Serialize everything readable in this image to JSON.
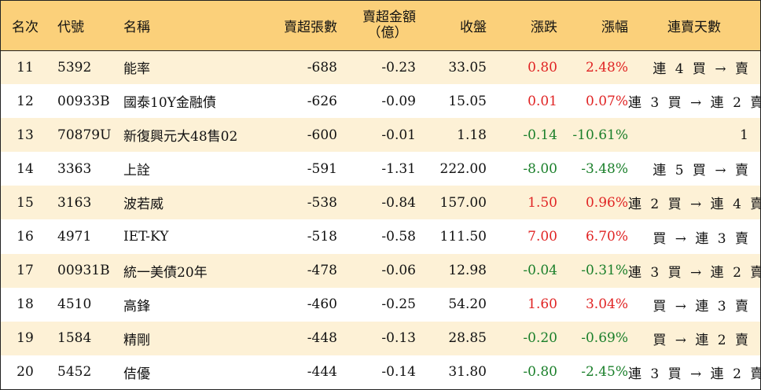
{
  "headers": {
    "rank": "名次",
    "code": "代號",
    "name": "名稱",
    "net_sell_sheets": "賣超張數",
    "net_sell_amount_l1": "賣超金額",
    "net_sell_amount_l2": "（億）",
    "close": "收盤",
    "change": "漲跌",
    "change_pct": "漲幅",
    "streak": "連賣天數"
  },
  "colors": {
    "header_bg": "#fbd07a",
    "row_alt_bg": "#fdf1d6",
    "up": "#e02424",
    "down": "#1a7f2a"
  },
  "rows": [
    {
      "rank": "11",
      "code": "5392",
      "name": "能率",
      "sheets": "-688",
      "amount": "-0.23",
      "close": "33.05",
      "change": "0.80",
      "pct": "2.48%",
      "dir": "up",
      "streak": "連 4 買 → 賣"
    },
    {
      "rank": "12",
      "code": "00933B",
      "name": "國泰10Y金融債",
      "sheets": "-626",
      "amount": "-0.09",
      "close": "15.05",
      "change": "0.01",
      "pct": "0.07%",
      "dir": "up",
      "streak": "連 3 買 → 連 2 賣"
    },
    {
      "rank": "13",
      "code": "70879U",
      "name": "新復興元大48售02",
      "sheets": "-600",
      "amount": "-0.01",
      "close": "1.18",
      "change": "-0.14",
      "pct": "-10.61%",
      "dir": "down",
      "streak": "1"
    },
    {
      "rank": "14",
      "code": "3363",
      "name": "上詮",
      "sheets": "-591",
      "amount": "-1.31",
      "close": "222.00",
      "change": "-8.00",
      "pct": "-3.48%",
      "dir": "down",
      "streak": "連 5 買 → 賣"
    },
    {
      "rank": "15",
      "code": "3163",
      "name": "波若威",
      "sheets": "-538",
      "amount": "-0.84",
      "close": "157.00",
      "change": "1.50",
      "pct": "0.96%",
      "dir": "up",
      "streak": "連 2 買 → 連 4 賣"
    },
    {
      "rank": "16",
      "code": "4971",
      "name": "IET-KY",
      "sheets": "-518",
      "amount": "-0.58",
      "close": "111.50",
      "change": "7.00",
      "pct": "6.70%",
      "dir": "up",
      "streak": "買 → 連 3 賣"
    },
    {
      "rank": "17",
      "code": "00931B",
      "name": "統一美債20年",
      "sheets": "-478",
      "amount": "-0.06",
      "close": "12.98",
      "change": "-0.04",
      "pct": "-0.31%",
      "dir": "down",
      "streak": "連 3 買 → 連 2 賣"
    },
    {
      "rank": "18",
      "code": "4510",
      "name": "高鋒",
      "sheets": "-460",
      "amount": "-0.25",
      "close": "54.20",
      "change": "1.60",
      "pct": "3.04%",
      "dir": "up",
      "streak": "買 → 連 3 賣"
    },
    {
      "rank": "19",
      "code": "1584",
      "name": "精剛",
      "sheets": "-448",
      "amount": "-0.13",
      "close": "28.85",
      "change": "-0.20",
      "pct": "-0.69%",
      "dir": "down",
      "streak": "買 → 連 2 賣"
    },
    {
      "rank": "20",
      "code": "5452",
      "name": "佶優",
      "sheets": "-444",
      "amount": "-0.14",
      "close": "31.80",
      "change": "-0.80",
      "pct": "-2.45%",
      "dir": "down",
      "streak": "連 3 買 → 連 2 賣"
    }
  ]
}
